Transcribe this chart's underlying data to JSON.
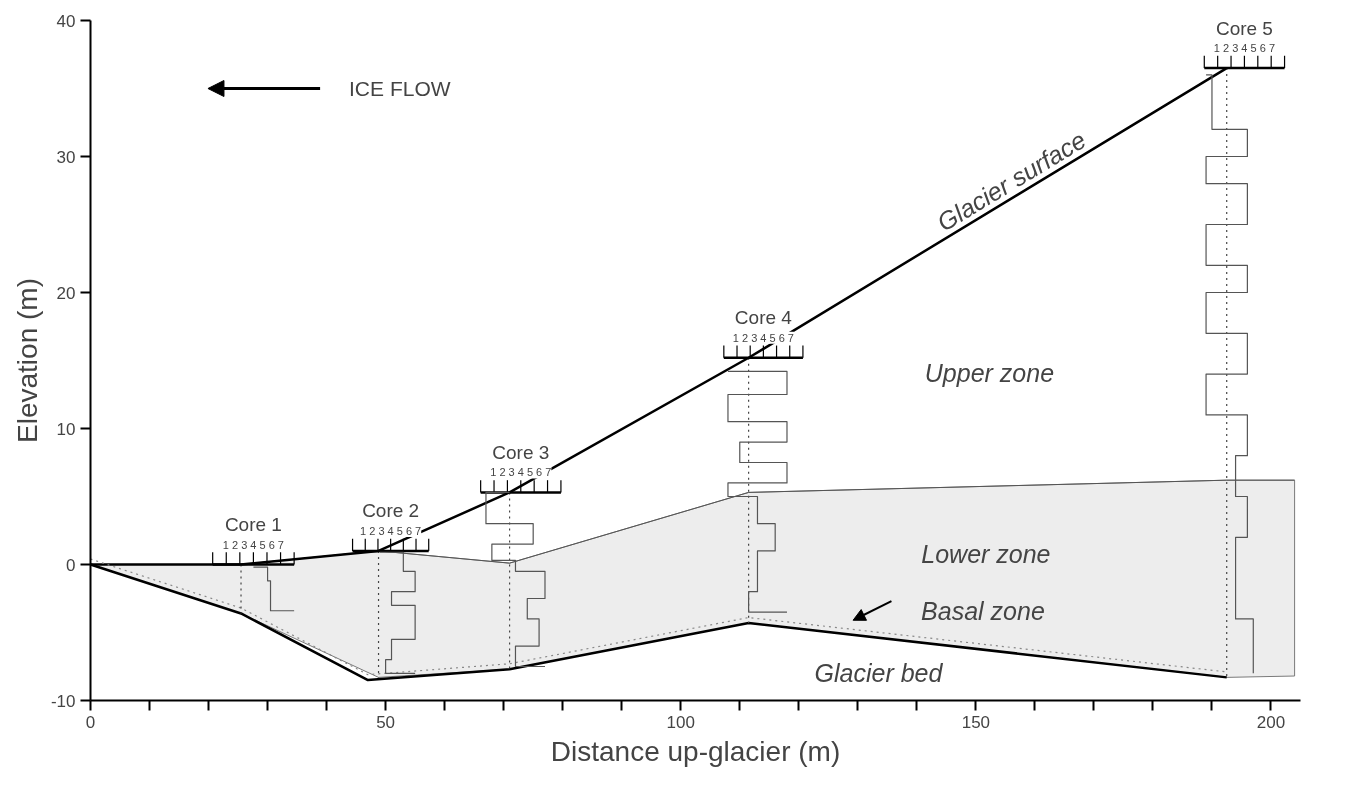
{
  "chart_data": {
    "type": "line",
    "xlabel": "Distance up-glacier (m)",
    "ylabel": "Elevation (m)",
    "xlim": [
      0,
      205
    ],
    "ylim": [
      -10,
      40
    ],
    "xticks": [
      0,
      {
        "value": 10,
        "label": null
      },
      {
        "value": 20,
        "label": null
      },
      {
        "value": 30,
        "label": null
      },
      {
        "value": 40,
        "label": null
      },
      50,
      {
        "value": 60,
        "label": null
      },
      {
        "value": 70,
        "label": null
      },
      {
        "value": 80,
        "label": null
      },
      {
        "value": 90,
        "label": null
      },
      100,
      {
        "value": 110,
        "label": null
      },
      {
        "value": 120,
        "label": null
      },
      {
        "value": 130,
        "label": null
      },
      {
        "value": 140,
        "label": null
      },
      150,
      {
        "value": 160,
        "label": null
      },
      {
        "value": 170,
        "label": null
      },
      {
        "value": 180,
        "label": null
      },
      {
        "value": 190,
        "label": null
      },
      200
    ],
    "yticks": [
      -10,
      0,
      10,
      20,
      30,
      40
    ],
    "grid": false,
    "series": [
      {
        "color": "#555555",
        "x": [
          0,
          25.5,
          48.8,
          71,
          111.5,
          192.5,
          204
        ],
        "values": [
          0,
          0,
          1,
          0.1,
          5.3,
          6.2,
          6.2
        ],
        "lower": [
          0,
          -3.6,
          -8.3,
          -7.7,
          -4.3,
          -8.3,
          -8.2
        ],
        "upper": [
          0,
          0,
          1,
          0.1,
          5.3,
          6.2,
          6.2
        ]
      },
      {
        "type": "line",
        "color": "#000000",
        "x": [
          0,
          25.5,
          48.8,
          71,
          111.5,
          192.5
        ],
        "values": [
          0,
          0,
          1,
          5.3,
          15.2,
          36.5
        ]
      },
      {
        "type": "line",
        "color": "#000000",
        "x": [
          0,
          25.5,
          47,
          71,
          111.5,
          192.5
        ],
        "values": [
          0,
          -3.6,
          -8.5,
          -7.7,
          -4.3,
          -8.3
        ]
      },
      {
        "type": "line",
        "color": "#888888",
        "line_style": "dotted",
        "x": [
          0,
          25.5,
          47,
          71,
          111.5,
          192.5
        ],
        "values": [
          0.4,
          -3.2,
          -8.1,
          -7.3,
          -3.9,
          -7.9
        ]
      },
      {
        "type": "line",
        "color": "#444444",
        "line_style": "dotted",
        "x": [
          25.5,
          25.5,
          null,
          48.8,
          48.8,
          null,
          71,
          71,
          null,
          111.5,
          111.5,
          null,
          192.5,
          192.5
        ],
        "values": [
          0,
          -3.6,
          null,
          1,
          -8.3,
          null,
          5.3,
          -7.7,
          null,
          15.2,
          -4.3,
          null,
          36.5,
          -8.3
        ]
      },
      {
        "type": "line",
        "color": "#000000",
        "x": [
          20.7,
          34.5,
          null,
          44.4,
          57.3,
          null,
          66.1,
          79.7,
          null,
          107.3,
          120.7,
          null,
          188.7,
          202.3
        ],
        "values": [
          0,
          0,
          null,
          1,
          1,
          null,
          5.3,
          5.3,
          null,
          15.2,
          15.2,
          null,
          36.5,
          36.5
        ]
      },
      {
        "type": "line",
        "color": "#555555",
        "x": [
          27.6,
          30,
          30,
          30.5,
          30.5,
          34.5
        ],
        "values": [
          -0.2,
          -0.2,
          -1.2,
          -1.2,
          -3.4,
          -3.4
        ]
      },
      {
        "type": "line",
        "color": "#555555",
        "x": [
          49,
          53,
          53,
          55,
          55,
          51,
          51,
          55,
          55,
          51,
          51,
          50,
          50,
          55
        ],
        "values": [
          0.9,
          0.9,
          -0.5,
          -0.5,
          -2,
          -2,
          -3,
          -3,
          -5.5,
          -5.5,
          -7,
          -7,
          -8,
          -8
        ]
      },
      {
        "type": "line",
        "color": "#555555",
        "x": [
          71,
          67,
          67,
          75,
          75,
          68,
          68,
          72,
          72,
          77,
          77,
          74,
          74,
          76,
          76,
          72,
          72,
          77
        ],
        "values": [
          5.3,
          5.3,
          3,
          3,
          1.5,
          1.5,
          0.3,
          0.3,
          -0.5,
          -0.5,
          -2.5,
          -2.5,
          -4,
          -4,
          -6,
          -6,
          -7.5,
          -7.5
        ]
      },
      {
        "type": "line",
        "color": "#555555",
        "x": [
          108,
          118,
          118,
          108,
          108,
          118,
          118,
          110,
          110,
          118,
          118,
          108,
          108,
          113,
          113,
          116,
          116,
          113,
          113,
          111.5,
          111.5,
          118
        ],
        "values": [
          14.2,
          14.2,
          12.5,
          12.5,
          10.5,
          10.5,
          9,
          9,
          7.5,
          7.5,
          6,
          6,
          5,
          5,
          3,
          3,
          1,
          1,
          -2,
          -2,
          -3.5,
          -3.5
        ]
      },
      {
        "type": "line",
        "color": "#555555",
        "x": [
          189,
          190,
          190,
          196,
          196,
          189,
          189,
          196,
          196,
          189,
          189,
          196,
          196,
          189,
          189,
          196,
          196,
          189,
          189,
          196,
          196,
          194,
          194,
          196,
          196,
          194,
          194,
          197,
          197
        ],
        "values": [
          36,
          36,
          32,
          32,
          30,
          30,
          28,
          28,
          25,
          25,
          22,
          22,
          20,
          20,
          17,
          17,
          14,
          14,
          11,
          11,
          8,
          8,
          5,
          5,
          2,
          2,
          -4,
          -4,
          -8
        ]
      }
    ],
    "annotations": [
      "Glacier surface",
      "ICE FLOW",
      "Basal zone",
      "Upper zone",
      "Lower zone",
      "Glacier bed",
      "Core 1",
      "Core 2",
      "Core 3",
      "Core 4",
      "Core 5",
      "1 2 3 4 5 6 7",
      "1 2 3 4 5 6 7",
      "1 2 3 4 5 6 7",
      "1 2 3 4 5 6 7",
      "1 2 3 4 5 6 7"
    ]
  }
}
